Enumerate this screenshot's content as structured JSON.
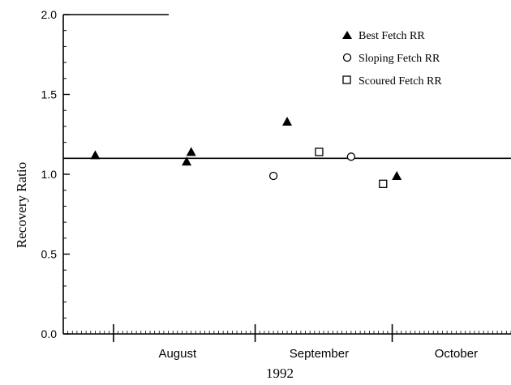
{
  "chart_data": {
    "type": "scatter",
    "title": "",
    "xlabel": "1992",
    "ylabel": "Recovery Ratio",
    "ylim": [
      0,
      2.0
    ],
    "yticks": [
      "0.0",
      "0.5",
      "1.0",
      "1.5",
      "2.0"
    ],
    "x_unit": "day of year 1992",
    "xlim": [
      203,
      301
    ],
    "month_labels": [
      {
        "label": "August",
        "center": 228
      },
      {
        "label": "September",
        "center": 259
      },
      {
        "label": "October",
        "center": 289
      }
    ],
    "month_boundaries": [
      214,
      245,
      275
    ],
    "reference_line": {
      "y": 1.1
    },
    "legend": {
      "position": "top-right"
    },
    "series": [
      {
        "name": "Best Fetch RR",
        "marker": "filled-triangle",
        "points": [
          {
            "x": 210,
            "y": 1.12
          },
          {
            "x": 230,
            "y": 1.08
          },
          {
            "x": 231,
            "y": 1.14
          },
          {
            "x": 252,
            "y": 1.33
          },
          {
            "x": 276,
            "y": 0.99
          }
        ]
      },
      {
        "name": "Sloping Fetch RR",
        "marker": "open-circle",
        "points": [
          {
            "x": 249,
            "y": 0.99
          },
          {
            "x": 266,
            "y": 1.11
          }
        ]
      },
      {
        "name": "Scoured Fetch RR",
        "marker": "open-square",
        "points": [
          {
            "x": 259,
            "y": 1.14
          },
          {
            "x": 273,
            "y": 0.94
          }
        ]
      }
    ]
  }
}
